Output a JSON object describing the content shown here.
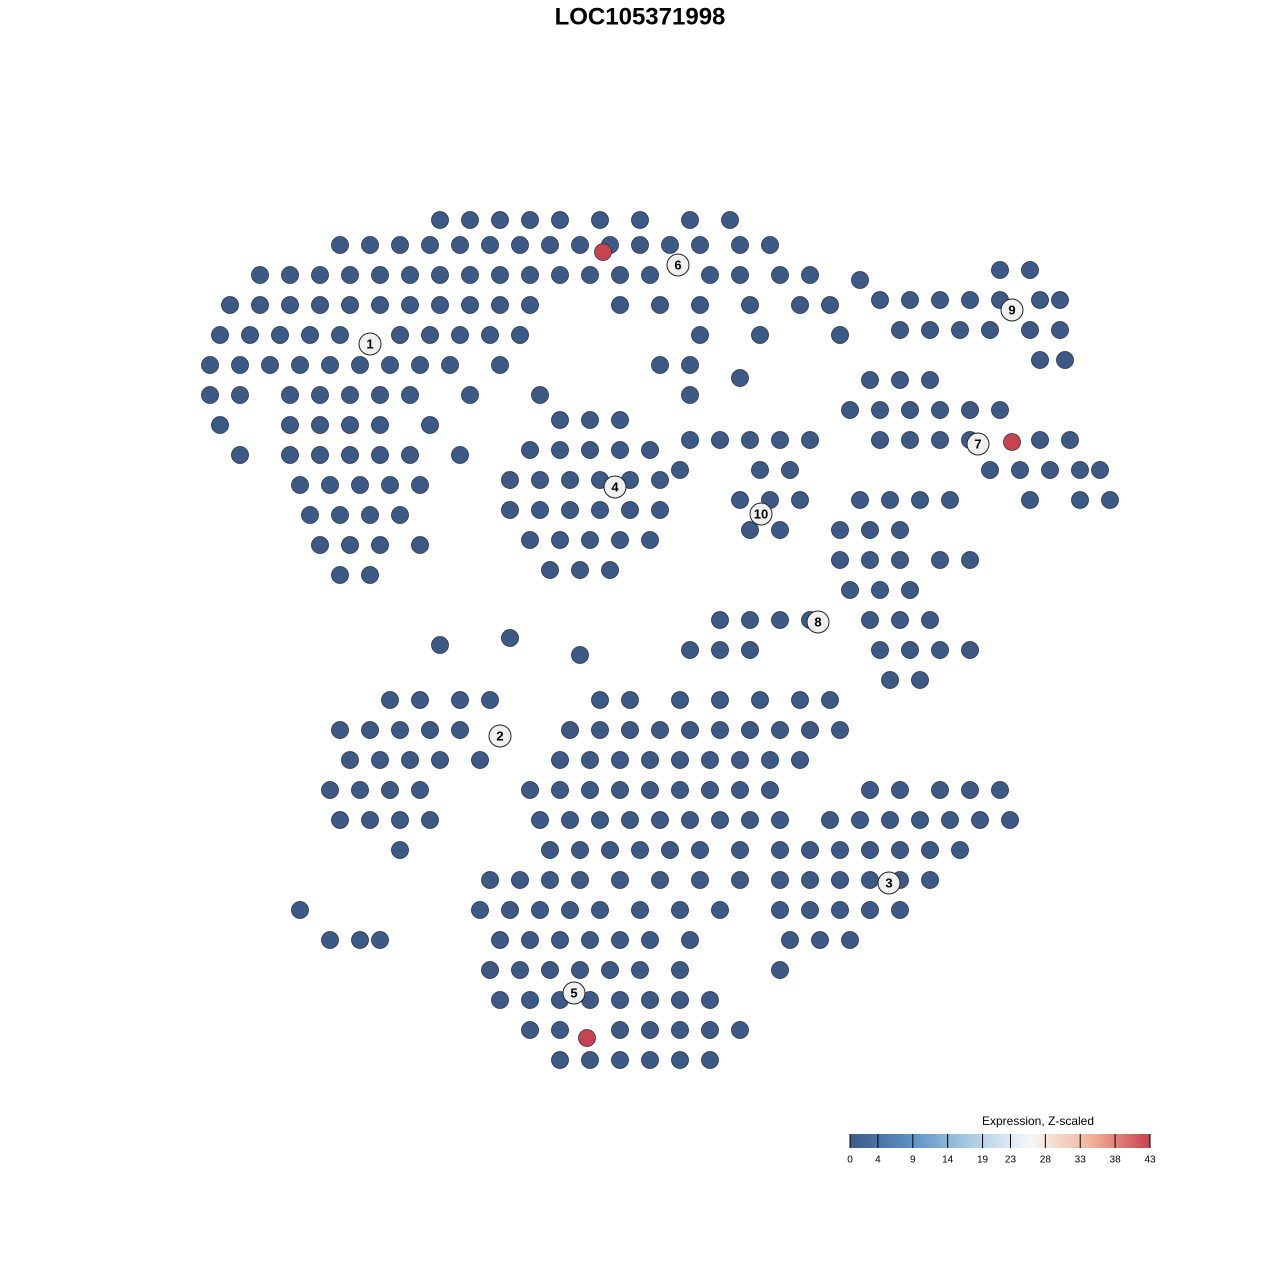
{
  "chart_data": {
    "type": "scatter",
    "title": "LOC105371998",
    "xlim": [
      0,
      1280
    ],
    "ylim": [
      1280,
      0
    ],
    "x": [
      440,
      470,
      500,
      530,
      560,
      600,
      640,
      690,
      730,
      340,
      370,
      400,
      430,
      460,
      490,
      520,
      550,
      580,
      610,
      640,
      670,
      700,
      740,
      770,
      260,
      290,
      320,
      350,
      380,
      410,
      440,
      470,
      500,
      530,
      560,
      590,
      620,
      650,
      710,
      740,
      780,
      810,
      230,
      260,
      290,
      320,
      350,
      380,
      410,
      440,
      470,
      500,
      530,
      620,
      660,
      700,
      750,
      800,
      830,
      220,
      250,
      280,
      310,
      340,
      400,
      430,
      460,
      490,
      520,
      700,
      760,
      840,
      210,
      240,
      270,
      300,
      330,
      360,
      390,
      420,
      450,
      500,
      660,
      690,
      210,
      240,
      290,
      320,
      350,
      380,
      410,
      470,
      540,
      690,
      220,
      290,
      320,
      350,
      380,
      430,
      240,
      290,
      320,
      350,
      380,
      410,
      460,
      300,
      330,
      360,
      390,
      420,
      310,
      340,
      370,
      400,
      320,
      350,
      380,
      420,
      340,
      370,
      560,
      590,
      620,
      530,
      560,
      590,
      620,
      650,
      510,
      540,
      570,
      600,
      630,
      660,
      510,
      540,
      570,
      600,
      630,
      660,
      530,
      560,
      590,
      620,
      650,
      550,
      580,
      610,
      690,
      720,
      750,
      780,
      810,
      680,
      760,
      790,
      740,
      770,
      800,
      750,
      780,
      1000,
      1030,
      880,
      910,
      940,
      970,
      1000,
      1040,
      1060,
      900,
      930,
      960,
      990,
      1030,
      1060,
      1040,
      1065,
      870,
      900,
      930,
      850,
      880,
      910,
      940,
      970,
      1000,
      880,
      910,
      940,
      970,
      1040,
      1070,
      990,
      1020,
      1050,
      1080,
      1100,
      1030,
      1080,
      1110,
      860,
      890,
      920,
      950,
      840,
      870,
      900,
      840,
      870,
      900,
      940,
      970,
      850,
      880,
      910,
      720,
      750,
      780,
      810,
      870,
      900,
      930,
      690,
      720,
      750,
      880,
      910,
      940,
      970,
      890,
      920,
      390,
      420,
      460,
      490,
      600,
      630,
      680,
      720,
      760,
      800,
      830,
      340,
      370,
      400,
      430,
      460,
      570,
      600,
      630,
      660,
      690,
      720,
      750,
      780,
      810,
      840,
      350,
      380,
      410,
      440,
      480,
      560,
      590,
      620,
      650,
      680,
      710,
      740,
      770,
      800,
      330,
      360,
      390,
      420,
      530,
      560,
      590,
      620,
      650,
      680,
      710,
      740,
      770,
      870,
      900,
      940,
      970,
      1000,
      340,
      370,
      400,
      430,
      540,
      570,
      600,
      630,
      660,
      690,
      720,
      750,
      780,
      830,
      860,
      890,
      920,
      950,
      980,
      1010,
      400,
      550,
      580,
      610,
      640,
      670,
      700,
      740,
      780,
      810,
      840,
      870,
      900,
      930,
      960,
      490,
      520,
      550,
      580,
      620,
      660,
      700,
      740,
      780,
      810,
      840,
      870,
      900,
      930,
      300,
      480,
      510,
      540,
      570,
      600,
      640,
      680,
      720,
      780,
      810,
      840,
      870,
      900,
      330,
      360,
      380,
      500,
      530,
      560,
      590,
      620,
      650,
      690,
      790,
      820,
      850,
      490,
      520,
      550,
      580,
      610,
      640,
      680,
      780,
      500,
      530,
      560,
      590,
      620,
      650,
      680,
      710,
      530,
      560,
      620,
      650,
      680,
      710,
      740,
      560,
      590,
      620,
      650,
      680,
      710,
      440,
      510,
      580,
      860,
      740,
      603,
      1012,
      587
    ],
    "y": [
      220,
      220,
      220,
      220,
      220,
      220,
      220,
      220,
      220,
      245,
      245,
      245,
      245,
      245,
      245,
      245,
      245,
      245,
      245,
      245,
      245,
      245,
      245,
      245,
      275,
      275,
      275,
      275,
      275,
      275,
      275,
      275,
      275,
      275,
      275,
      275,
      275,
      275,
      275,
      275,
      275,
      275,
      305,
      305,
      305,
      305,
      305,
      305,
      305,
      305,
      305,
      305,
      305,
      305,
      305,
      305,
      305,
      305,
      305,
      335,
      335,
      335,
      335,
      335,
      335,
      335,
      335,
      335,
      335,
      335,
      335,
      335,
      365,
      365,
      365,
      365,
      365,
      365,
      365,
      365,
      365,
      365,
      365,
      365,
      395,
      395,
      395,
      395,
      395,
      395,
      395,
      395,
      395,
      395,
      425,
      425,
      425,
      425,
      425,
      425,
      455,
      455,
      455,
      455,
      455,
      455,
      455,
      485,
      485,
      485,
      485,
      485,
      515,
      515,
      515,
      515,
      545,
      545,
      545,
      545,
      575,
      575,
      420,
      420,
      420,
      450,
      450,
      450,
      450,
      450,
      480,
      480,
      480,
      480,
      480,
      480,
      510,
      510,
      510,
      510,
      510,
      510,
      540,
      540,
      540,
      540,
      540,
      570,
      570,
      570,
      440,
      440,
      440,
      440,
      440,
      470,
      470,
      470,
      500,
      500,
      500,
      530,
      530,
      270,
      270,
      300,
      300,
      300,
      300,
      300,
      300,
      300,
      330,
      330,
      330,
      330,
      330,
      330,
      360,
      360,
      380,
      380,
      380,
      410,
      410,
      410,
      410,
      410,
      410,
      440,
      440,
      440,
      440,
      440,
      440,
      470,
      470,
      470,
      470,
      470,
      500,
      500,
      500,
      500,
      500,
      500,
      500,
      530,
      530,
      530,
      560,
      560,
      560,
      560,
      560,
      590,
      590,
      590,
      620,
      620,
      620,
      620,
      620,
      620,
      620,
      650,
      650,
      650,
      650,
      650,
      650,
      650,
      680,
      680,
      700,
      700,
      700,
      700,
      700,
      700,
      700,
      700,
      700,
      700,
      700,
      730,
      730,
      730,
      730,
      730,
      730,
      730,
      730,
      730,
      730,
      730,
      730,
      730,
      730,
      730,
      760,
      760,
      760,
      760,
      760,
      760,
      760,
      760,
      760,
      760,
      760,
      760,
      760,
      760,
      790,
      790,
      790,
      790,
      790,
      790,
      790,
      790,
      790,
      790,
      790,
      790,
      790,
      790,
      790,
      790,
      790,
      790,
      820,
      820,
      820,
      820,
      820,
      820,
      820,
      820,
      820,
      820,
      820,
      820,
      820,
      820,
      820,
      820,
      820,
      820,
      820,
      820,
      850,
      850,
      850,
      850,
      850,
      850,
      850,
      850,
      850,
      850,
      850,
      850,
      850,
      850,
      850,
      880,
      880,
      880,
      880,
      880,
      880,
      880,
      880,
      880,
      880,
      880,
      880,
      880,
      880,
      910,
      910,
      910,
      910,
      910,
      910,
      910,
      910,
      910,
      910,
      910,
      910,
      910,
      910,
      940,
      940,
      940,
      940,
      940,
      940,
      940,
      940,
      940,
      940,
      940,
      940,
      940,
      970,
      970,
      970,
      970,
      970,
      970,
      970,
      970,
      1000,
      1000,
      1000,
      1000,
      1000,
      1000,
      1000,
      1000,
      1030,
      1030,
      1030,
      1030,
      1030,
      1030,
      1030,
      1060,
      1060,
      1060,
      1060,
      1060,
      1060,
      645,
      638,
      655,
      280,
      378,
      252,
      442,
      1038
    ],
    "values": [
      0,
      0,
      0,
      0,
      0,
      0,
      0,
      0,
      0,
      0,
      0,
      0,
      0,
      0,
      0,
      0,
      0,
      0,
      0,
      0,
      0,
      0,
      0,
      0,
      0,
      0,
      0,
      0,
      0,
      0,
      0,
      0,
      0,
      0,
      0,
      0,
      0,
      0,
      0,
      0,
      0,
      0,
      0,
      0,
      0,
      0,
      0,
      0,
      0,
      0,
      0,
      0,
      0,
      0,
      0,
      0,
      0,
      0,
      0,
      0,
      0,
      0,
      0,
      0,
      0,
      0,
      0,
      0,
      0,
      0,
      0,
      0,
      0,
      0,
      0,
      0,
      0,
      0,
      0,
      0,
      0,
      0,
      0,
      0,
      0,
      0,
      0,
      0,
      0,
      0,
      0,
      0,
      0,
      0,
      0,
      0,
      0,
      0,
      0,
      0,
      0,
      0,
      0,
      0,
      0,
      0,
      0,
      0,
      0,
      0,
      0,
      0,
      0,
      0,
      0,
      0,
      0,
      0,
      0,
      0,
      0,
      0,
      0,
      0,
      0,
      0,
      0,
      0,
      0,
      0,
      0,
      0,
      0,
      0,
      0,
      0,
      0,
      0,
      0,
      0,
      0,
      0,
      0,
      0,
      0,
      0,
      0,
      0,
      0,
      0,
      0,
      0,
      0,
      0,
      0,
      0,
      0,
      0,
      0,
      0,
      0,
      0,
      0,
      0,
      0,
      0,
      0,
      0,
      0,
      0,
      0,
      0,
      0,
      0,
      0,
      0,
      0,
      0,
      0,
      0,
      0,
      0,
      0,
      0,
      0,
      0,
      0,
      0,
      0,
      0,
      0,
      0,
      0,
      0,
      0,
      0,
      0,
      0,
      0,
      0,
      0,
      0,
      0,
      0,
      0,
      0,
      0,
      0,
      0,
      0,
      0,
      0,
      0,
      0,
      0,
      0,
      0,
      0,
      0,
      0,
      0,
      0,
      0,
      0,
      0,
      0,
      0,
      0,
      0,
      0,
      0,
      0,
      0,
      0,
      0,
      0,
      0,
      0,
      0,
      0,
      0,
      0,
      0,
      0,
      0,
      0,
      0,
      0,
      0,
      0,
      0,
      0,
      0,
      0,
      0,
      0,
      0,
      0,
      0,
      0,
      0,
      0,
      0,
      0,
      0,
      0,
      0,
      0,
      0,
      0,
      0,
      0,
      0,
      0,
      0,
      0,
      0,
      0,
      0,
      0,
      0,
      0,
      0,
      0,
      0,
      0,
      0,
      0,
      0,
      0,
      0,
      0,
      0,
      0,
      0,
      0,
      0,
      0,
      0,
      0,
      0,
      0,
      0,
      0,
      0,
      0,
      0,
      0,
      0,
      0,
      0,
      0,
      0,
      0,
      0,
      0,
      0,
      0,
      0,
      0,
      0,
      0,
      0,
      0,
      0,
      0,
      0,
      0,
      0,
      0,
      0,
      0,
      0,
      0,
      0,
      0,
      0,
      0,
      0,
      0,
      0,
      0,
      0,
      0,
      0,
      0,
      0,
      0,
      0,
      0,
      0,
      0,
      0,
      0,
      0,
      0,
      0,
      0,
      0,
      0,
      0,
      0,
      0,
      0,
      0,
      0,
      0,
      0,
      0,
      0,
      0,
      0,
      0,
      0,
      0,
      0,
      0,
      0,
      0,
      0,
      0,
      0,
      0,
      0,
      0,
      0,
      0,
      0,
      0,
      0,
      0,
      0,
      0,
      0,
      0,
      0,
      0,
      0,
      0,
      0,
      0,
      0,
      43,
      43,
      43
    ],
    "cluster_labels": [
      {
        "text": "1",
        "x": 370,
        "y": 344
      },
      {
        "text": "2",
        "x": 500,
        "y": 736
      },
      {
        "text": "3",
        "x": 889,
        "y": 883
      },
      {
        "text": "4",
        "x": 615,
        "y": 487
      },
      {
        "text": "5",
        "x": 574,
        "y": 993
      },
      {
        "text": "6",
        "x": 678,
        "y": 265
      },
      {
        "text": "7",
        "x": 978,
        "y": 444
      },
      {
        "text": "8",
        "x": 818,
        "y": 622
      },
      {
        "text": "9",
        "x": 1012,
        "y": 310
      },
      {
        "text": "10",
        "x": 761,
        "y": 514
      }
    ],
    "colorbar_title": "Expression, Z-scaled",
    "clim": [
      0,
      43
    ],
    "cticks": [
      0,
      4,
      9,
      14,
      19,
      23,
      28,
      33,
      38,
      43
    ],
    "colors": [
      "#3d5a87",
      "#5b8fc4",
      "#a9cbe3",
      "#f7f7f7",
      "#f2b49a",
      "#c7434f"
    ]
  }
}
